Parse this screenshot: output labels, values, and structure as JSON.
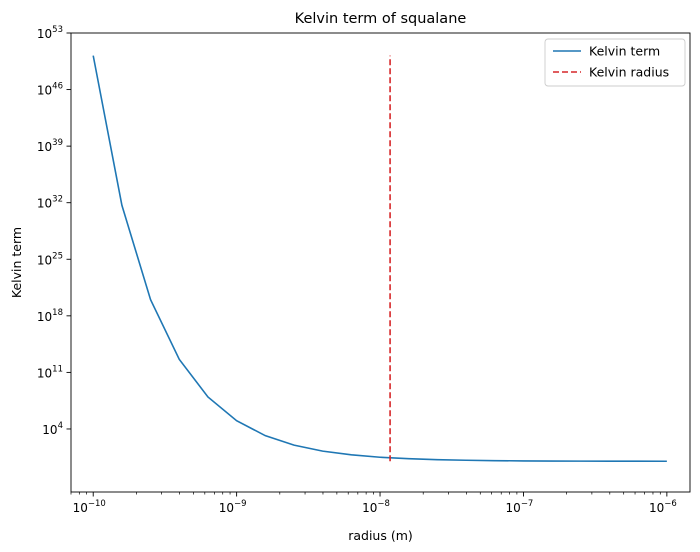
{
  "chart_data": {
    "type": "line",
    "title": "Kelvin term of squalane",
    "xlabel": "radius (m)",
    "ylabel": "Kelvin term",
    "xscale": "log",
    "yscale": "log",
    "xlim": [
      7e-11,
      1.45e-06
    ],
    "ylim_log10": [
      -3.8,
      53
    ],
    "grid": false,
    "legend_position": "top-right",
    "x_ticks": [
      {
        "base": "10",
        "exp": "−10",
        "log10": -10
      },
      {
        "base": "10",
        "exp": "−9",
        "log10": -9
      },
      {
        "base": "10",
        "exp": "−8",
        "log10": -8
      },
      {
        "base": "10",
        "exp": "−7",
        "log10": -7
      },
      {
        "base": "10",
        "exp": "−6",
        "log10": -6
      }
    ],
    "y_ticks": [
      {
        "base": "10",
        "exp": "4",
        "log10": 4
      },
      {
        "base": "10",
        "exp": "11",
        "log10": 11
      },
      {
        "base": "10",
        "exp": "18",
        "log10": 18
      },
      {
        "base": "10",
        "exp": "25",
        "log10": 25
      },
      {
        "base": "10",
        "exp": "32",
        "log10": 32
      },
      {
        "base": "10",
        "exp": "39",
        "log10": 39
      },
      {
        "base": "10",
        "exp": "46",
        "log10": 46
      },
      {
        "base": "10",
        "exp": "53",
        "log10": 53
      }
    ],
    "series": [
      {
        "name": "Kelvin term",
        "color": "#1f77b4",
        "style": "solid",
        "log10_x": [
          -10,
          -9.8,
          -9.6,
          -9.4,
          -9.2,
          -9,
          -8.8,
          -8.6,
          -8.4,
          -8.2,
          -8,
          -7.8,
          -7.6,
          -7.4,
          -7.2,
          -7,
          -6.8,
          -6.6,
          -6.4,
          -6.2,
          -6
        ],
        "log10_y": [
          50.2,
          31.68,
          19.99,
          12.62,
          7.96,
          5.02,
          3.17,
          2.0,
          1.26,
          0.8,
          0.5,
          0.32,
          0.2,
          0.13,
          0.08,
          0.05,
          0.03,
          0.02,
          0.013,
          0.008,
          0.005
        ]
      },
      {
        "name": "Kelvin radius",
        "color": "#d62728",
        "style": "dashed",
        "log10_x": [
          -7.93,
          -7.93
        ],
        "log10_y": [
          0.0,
          50.2
        ]
      }
    ]
  }
}
